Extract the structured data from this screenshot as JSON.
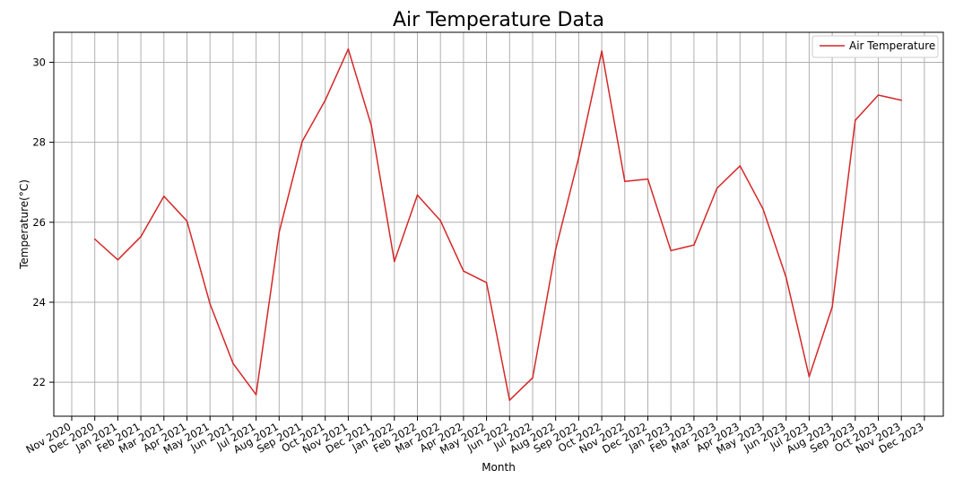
{
  "chart_data": {
    "type": "line",
    "title": "Air Temperature Data",
    "xlabel": "Month",
    "ylabel": "Temperature(°C)",
    "x_tick_labels": [
      "Nov 2020",
      "Dec 2020",
      "Jan 2021",
      "Feb 2021",
      "Mar 2021",
      "Apr 2021",
      "May 2021",
      "Jun 2021",
      "Jul 2021",
      "Aug 2021",
      "Sep 2021",
      "Oct 2021",
      "Nov 2021",
      "Dec 2021",
      "Jan 2022",
      "Feb 2022",
      "Mar 2022",
      "Apr 2022",
      "May 2022",
      "Jun 2022",
      "Jul 2022",
      "Aug 2022",
      "Sep 2022",
      "Oct 2022",
      "Nov 2022",
      "Dec 2022",
      "Jan 2023",
      "Feb 2023",
      "Mar 2023",
      "Apr 2023",
      "May 2023",
      "Jun 2023",
      "Jul 2023",
      "Aug 2023",
      "Sep 2023",
      "Oct 2023",
      "Nov 2023",
      "Dec 2023"
    ],
    "x": [
      "Dec 2020",
      "Jan 2021",
      "Feb 2021",
      "Mar 2021",
      "Apr 2021",
      "May 2021",
      "Jun 2021",
      "Jul 2021",
      "Aug 2021",
      "Sep 2021",
      "Oct 2021",
      "Nov 2021",
      "Dec 2021",
      "Jan 2022",
      "Feb 2022",
      "Mar 2022",
      "Apr 2022",
      "May 2022",
      "Jun 2022",
      "Jul 2022",
      "Aug 2022",
      "Sep 2022",
      "Oct 2022",
      "Nov 2022",
      "Dec 2022",
      "Jan 2023",
      "Feb 2023",
      "Mar 2023",
      "Apr 2023",
      "May 2023",
      "Jun 2023",
      "Jul 2023",
      "Aug 2023",
      "Sep 2023",
      "Oct 2023",
      "Nov 2023"
    ],
    "series": [
      {
        "name": "Air Temperature",
        "color": "#d62728",
        "values": [
          25.58,
          25.06,
          25.64,
          26.65,
          26.03,
          23.96,
          22.47,
          21.69,
          25.75,
          28.02,
          29.05,
          30.33,
          28.42,
          25.02,
          26.68,
          26.04,
          24.78,
          24.49,
          21.55,
          22.11,
          25.32,
          27.62,
          30.28,
          27.02,
          27.08,
          25.29,
          25.43,
          26.85,
          27.41,
          26.33,
          24.62,
          22.14,
          23.88,
          28.55,
          29.18,
          29.05
        ]
      }
    ],
    "y_ticks": [
      22,
      24,
      26,
      28,
      30
    ],
    "ylim": [
      21.15,
      30.75
    ],
    "xlim": [
      "Nov 2020",
      "Dec 2023"
    ],
    "grid": true,
    "legend_position": "top-right"
  }
}
